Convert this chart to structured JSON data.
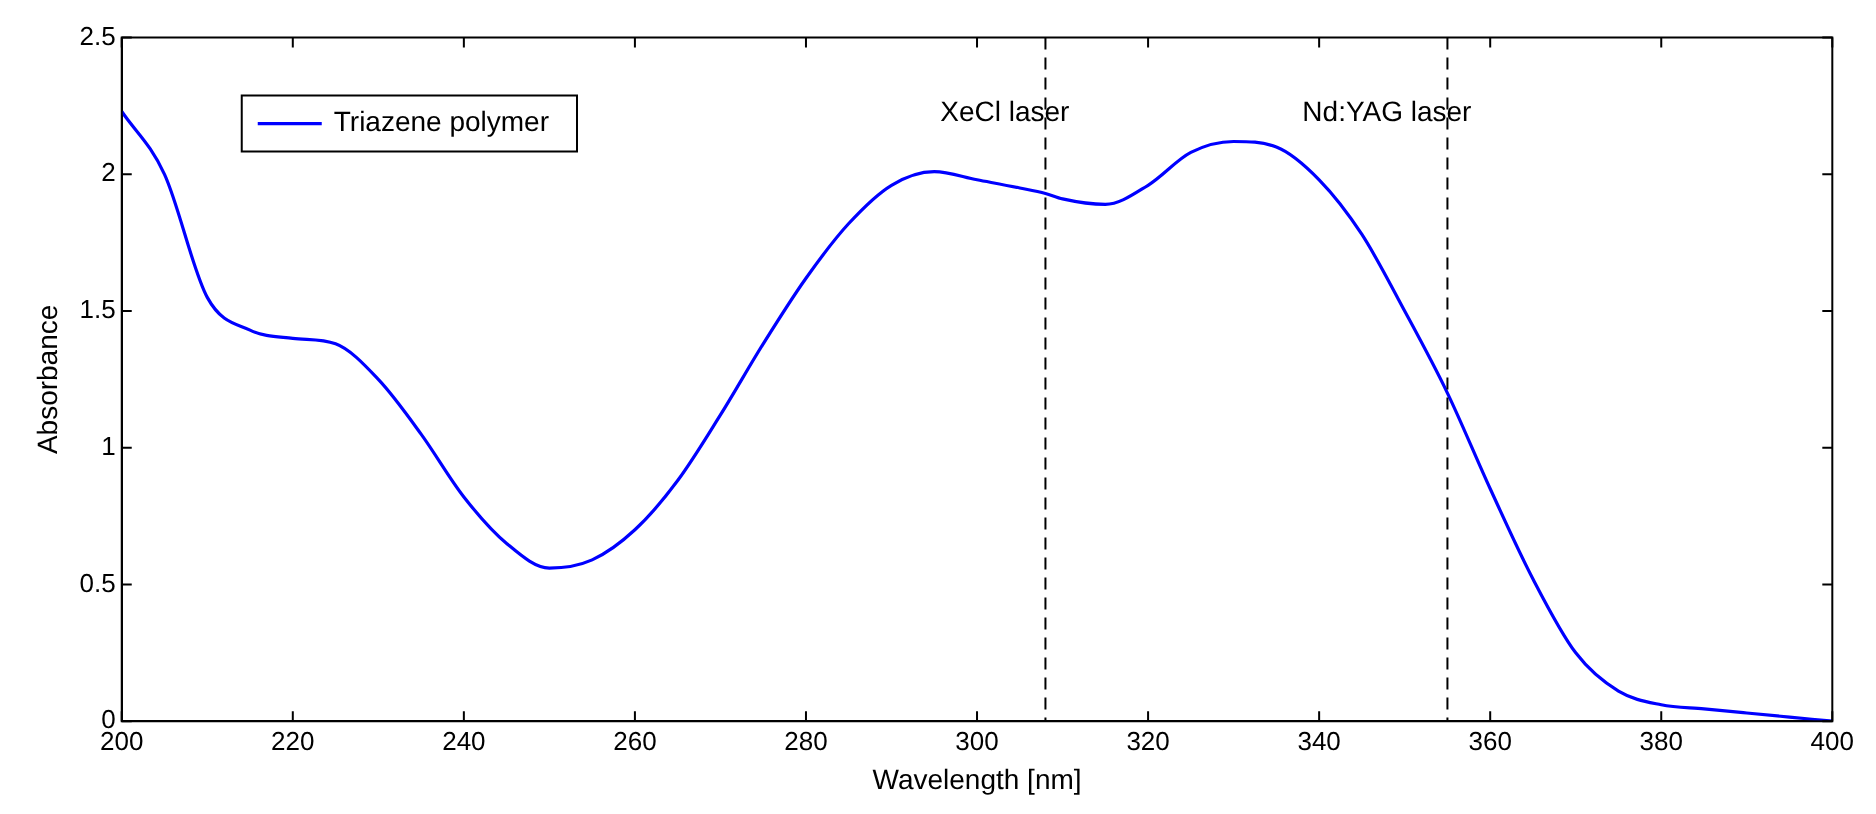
{
  "chart_data": {
    "type": "line",
    "xlabel": "Wavelength [nm]",
    "ylabel": "Absorbance",
    "x": [
      200,
      205,
      210,
      215,
      220,
      225,
      230,
      235,
      240,
      245,
      250,
      255,
      260,
      265,
      270,
      275,
      280,
      285,
      290,
      295,
      300,
      305,
      308,
      310,
      315,
      320,
      325,
      330,
      335,
      340,
      345,
      350,
      355,
      360,
      365,
      370,
      375,
      380,
      385,
      390,
      395,
      400
    ],
    "series": [
      {
        "name": "Triazene polymer",
        "color": "#0000ff",
        "values": [
          2.23,
          2.0,
          1.55,
          1.43,
          1.4,
          1.38,
          1.25,
          1.05,
          0.82,
          0.65,
          0.56,
          0.59,
          0.7,
          0.88,
          1.12,
          1.38,
          1.62,
          1.82,
          1.96,
          2.01,
          1.98,
          1.95,
          1.93,
          1.91,
          1.89,
          1.96,
          2.08,
          2.12,
          2.1,
          1.98,
          1.78,
          1.5,
          1.2,
          0.85,
          0.52,
          0.25,
          0.11,
          0.06,
          0.045,
          0.03,
          0.015,
          0.0
        ]
      }
    ],
    "xlim": [
      200,
      400
    ],
    "xticks": [
      200,
      220,
      240,
      260,
      280,
      300,
      320,
      340,
      360,
      380,
      400
    ],
    "ylim": [
      0,
      2.5
    ],
    "yticks": [
      0,
      0.5,
      1,
      1.5,
      2,
      2.5
    ],
    "ref_lines": [
      {
        "axis": "x",
        "value": 308,
        "label": "XeCl laser",
        "color": "#000000",
        "line_style": "dashed"
      },
      {
        "axis": "x",
        "value": 355,
        "label": "Nd:YAG laser",
        "color": "#000000",
        "line_style": "dashed"
      }
    ],
    "legend": "top left",
    "grid": false,
    "marker": "none",
    "line_style": "solid"
  }
}
